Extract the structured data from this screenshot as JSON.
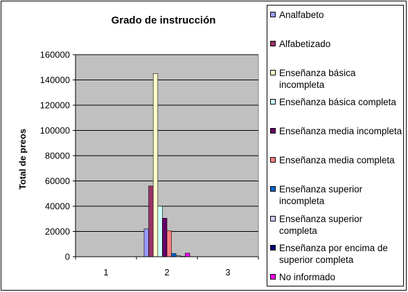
{
  "chart_data": {
    "type": "bar",
    "title": "Grado de instrucción",
    "xlabel": "",
    "ylabel": "Total de preos",
    "categories": [
      "1",
      "2",
      "3"
    ],
    "ylim": [
      0,
      160000
    ],
    "yticks": [
      "0",
      "20000",
      "40000",
      "60000",
      "80000",
      "100000",
      "120000",
      "140000",
      "160000"
    ],
    "grid": true,
    "legend_position": "right",
    "series": [
      {
        "name": "Analfabeto",
        "color": "#9999ff",
        "values": [
          0,
          22000,
          0
        ]
      },
      {
        "name": "Alfabetizado",
        "color": "#993366",
        "values": [
          0,
          56000,
          0
        ]
      },
      {
        "name": "Enseñanza básica incompleta",
        "color": "#ffffcc",
        "values": [
          0,
          145000,
          0
        ]
      },
      {
        "name": "Enseñanza básica completa",
        "color": "#ccffff",
        "values": [
          0,
          40000,
          0
        ]
      },
      {
        "name": "Enseñanza media incompleta",
        "color": "#660066",
        "values": [
          0,
          30500,
          0
        ]
      },
      {
        "name": "Enseñanza media completa",
        "color": "#ff8080",
        "values": [
          0,
          20500,
          0
        ]
      },
      {
        "name": "Enseñanza superior incompleta",
        "color": "#0066cc",
        "values": [
          0,
          2500,
          0
        ]
      },
      {
        "name": "Enseñanza superior completa",
        "color": "#ccccff",
        "values": [
          0,
          800,
          0
        ]
      },
      {
        "name": "Enseñanza por encima de superior completa",
        "color": "#000080",
        "values": [
          0,
          300,
          0
        ]
      },
      {
        "name": "No informado",
        "color": "#ff00ff",
        "values": [
          0,
          2800,
          0
        ]
      }
    ],
    "plot_background": "#c0c0c0"
  }
}
